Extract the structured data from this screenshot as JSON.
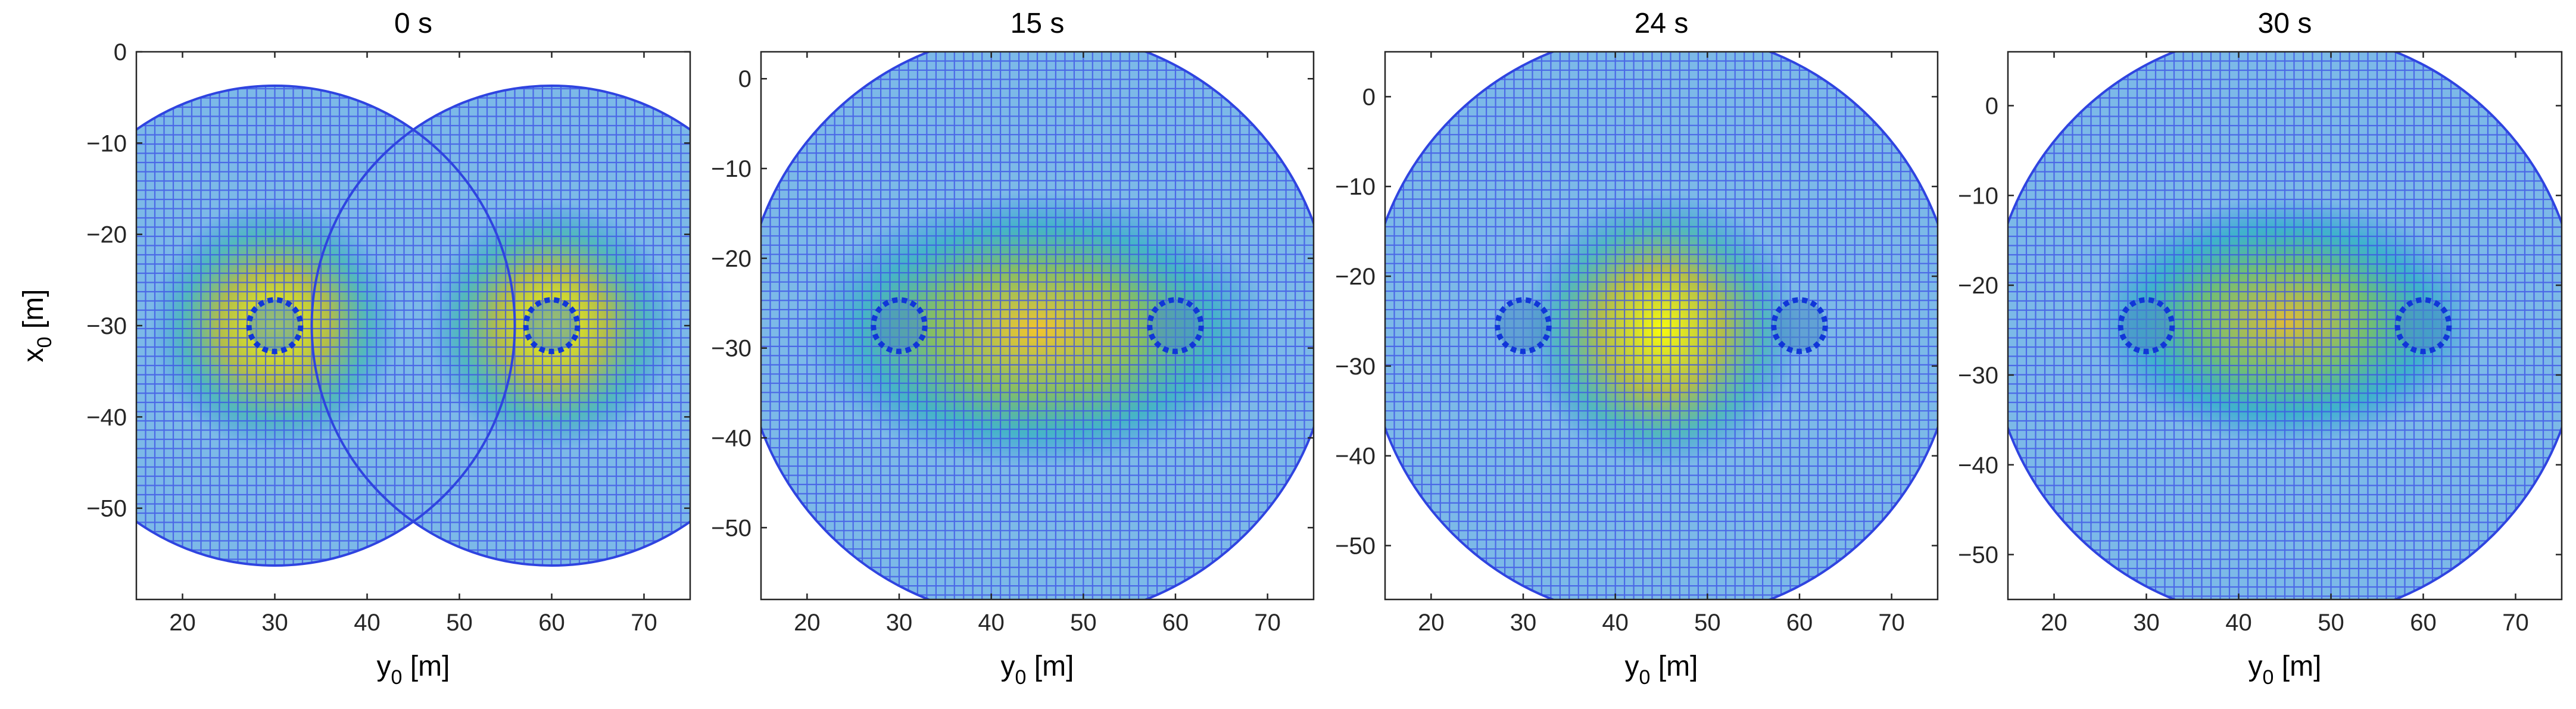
{
  "chart_data": [
    {
      "type": "heatmap",
      "title": "0 s",
      "xlabel": {
        "base": "y",
        "sub": "0",
        "suffix": " [m]"
      },
      "ylabel": {
        "base": "x",
        "sub": "0",
        "suffix": " [m]"
      },
      "xlim": [
        15,
        75
      ],
      "ylim": [
        -60,
        0
      ],
      "xticks": [
        20,
        30,
        40,
        50,
        60,
        70
      ],
      "yticks": [
        0,
        -10,
        -20,
        -30,
        -40,
        -50
      ],
      "grid_spacing_m": 1.0,
      "domain": "two overlapping discs",
      "circles": [
        {
          "cx": 30,
          "cy": -30,
          "r": 26
        },
        {
          "cx": 60,
          "cy": -30,
          "r": 26
        }
      ],
      "hotspots": [
        {
          "cx": 30,
          "cy": -30,
          "rx": 9,
          "ry": 9,
          "level": 1.0
        },
        {
          "cx": 60,
          "cy": -30,
          "rx": 9,
          "ry": 9,
          "level": 1.0
        }
      ],
      "obstacles": [
        {
          "cx": 30,
          "cy": -30,
          "r": 2.8
        },
        {
          "cx": 60,
          "cy": -30,
          "r": 2.8
        }
      ]
    },
    {
      "type": "heatmap",
      "title": "15 s",
      "xlabel": {
        "base": "y",
        "sub": "0",
        "suffix": " [m]"
      },
      "ylabel": null,
      "xlim": [
        15,
        75
      ],
      "ylim": [
        -58,
        3
      ],
      "xticks": [
        20,
        30,
        40,
        50,
        60,
        70
      ],
      "yticks": [
        0,
        -10,
        -20,
        -30,
        -40,
        -50
      ],
      "grid_spacing_m": 1.0,
      "domain": "disc",
      "circles": [
        {
          "cx": 45,
          "cy": -27.5,
          "r": 32
        }
      ],
      "hotspots": [
        {
          "cx": 45,
          "cy": -28,
          "rx": 17,
          "ry": 10,
          "level": 0.9
        }
      ],
      "obstacles": [
        {
          "cx": 30,
          "cy": -27.5,
          "r": 2.8
        },
        {
          "cx": 60,
          "cy": -27.5,
          "r": 2.8
        }
      ]
    },
    {
      "type": "heatmap",
      "title": "24 s",
      "xlabel": {
        "base": "y",
        "sub": "0",
        "suffix": " [m]"
      },
      "ylabel": null,
      "xlim": [
        15,
        75
      ],
      "ylim": [
        -56,
        5
      ],
      "xticks": [
        20,
        30,
        40,
        50,
        60,
        70
      ],
      "yticks": [
        0,
        -10,
        -20,
        -30,
        -40,
        -50
      ],
      "grid_spacing_m": 1.0,
      "domain": "disc",
      "circles": [
        {
          "cx": 45,
          "cy": -25.5,
          "r": 32
        }
      ],
      "hotspots": [
        {
          "cx": 45,
          "cy": -26,
          "rx": 10,
          "ry": 10,
          "level": 1.0
        }
      ],
      "obstacles": [
        {
          "cx": 30,
          "cy": -25.5,
          "r": 2.8
        },
        {
          "cx": 60,
          "cy": -25.5,
          "r": 2.8
        }
      ]
    },
    {
      "type": "heatmap",
      "title": "30 s",
      "xlabel": {
        "base": "y",
        "sub": "0",
        "suffix": " [m]"
      },
      "ylabel": null,
      "xlim": [
        15,
        75
      ],
      "ylim": [
        -55,
        6
      ],
      "xticks": [
        20,
        30,
        40,
        50,
        60,
        70
      ],
      "yticks": [
        0,
        -10,
        -20,
        -30,
        -40,
        -50
      ],
      "grid_spacing_m": 1.0,
      "domain": "disc",
      "circles": [
        {
          "cx": 45,
          "cy": -24.5,
          "r": 32
        }
      ],
      "hotspots": [
        {
          "cx": 45,
          "cy": -24,
          "rx": 14,
          "ry": 9,
          "level": 0.85
        }
      ],
      "obstacles": [
        {
          "cx": 30,
          "cy": -24.5,
          "r": 2.8
        },
        {
          "cx": 60,
          "cy": -24.5,
          "r": 2.8
        }
      ]
    }
  ]
}
